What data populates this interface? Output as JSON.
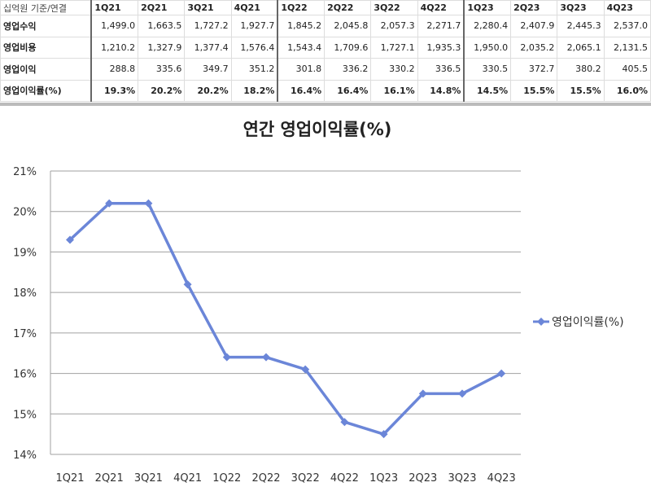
{
  "table": {
    "corner": "십억원 기준/연결",
    "columns": [
      "1Q21",
      "2Q21",
      "3Q21",
      "4Q21",
      "1Q22",
      "2Q22",
      "3Q22",
      "4Q22",
      "1Q23",
      "2Q23",
      "3Q23",
      "4Q23"
    ],
    "rows": [
      {
        "label": "영업수익",
        "values": [
          "1,499.0",
          "1,663.5",
          "1,727.2",
          "1,927.7",
          "1,845.2",
          "2,045.8",
          "2,057.3",
          "2,271.7",
          "2,280.4",
          "2,407.9",
          "2,445.3",
          "2,537.0"
        ]
      },
      {
        "label": "영업비용",
        "values": [
          "1,210.2",
          "1,327.9",
          "1,377.4",
          "1,576.4",
          "1,543.4",
          "1,709.6",
          "1,727.1",
          "1,935.3",
          "1,950.0",
          "2,035.2",
          "2,065.1",
          "2,131.5"
        ]
      },
      {
        "label": "영업이익",
        "values": [
          "288.8",
          "335.6",
          "349.7",
          "351.2",
          "301.8",
          "336.2",
          "330.2",
          "336.5",
          "330.5",
          "372.7",
          "380.2",
          "405.5"
        ]
      },
      {
        "label": "영업이익률(%)",
        "values": [
          "19.3%",
          "20.2%",
          "20.2%",
          "18.2%",
          "16.4%",
          "16.4%",
          "16.1%",
          "14.8%",
          "14.5%",
          "15.5%",
          "15.5%",
          "16.0%"
        ]
      }
    ]
  },
  "chart_data": {
    "type": "line",
    "title": "연간 영업이익률(%)",
    "categories": [
      "1Q21",
      "2Q21",
      "3Q21",
      "4Q21",
      "1Q22",
      "2Q22",
      "3Q22",
      "4Q22",
      "1Q23",
      "2Q23",
      "3Q23",
      "4Q23"
    ],
    "series": [
      {
        "name": "영업이익률(%)",
        "values": [
          19.3,
          20.2,
          20.2,
          18.2,
          16.4,
          16.4,
          16.1,
          14.8,
          14.5,
          15.5,
          15.5,
          16.0
        ],
        "color": "#6b86d8"
      }
    ],
    "ylim": [
      14,
      21
    ],
    "yticks": [
      "14%",
      "15%",
      "16%",
      "17%",
      "18%",
      "19%",
      "20%",
      "21%"
    ],
    "grid": true,
    "legend": "right",
    "marker": "diamond"
  }
}
